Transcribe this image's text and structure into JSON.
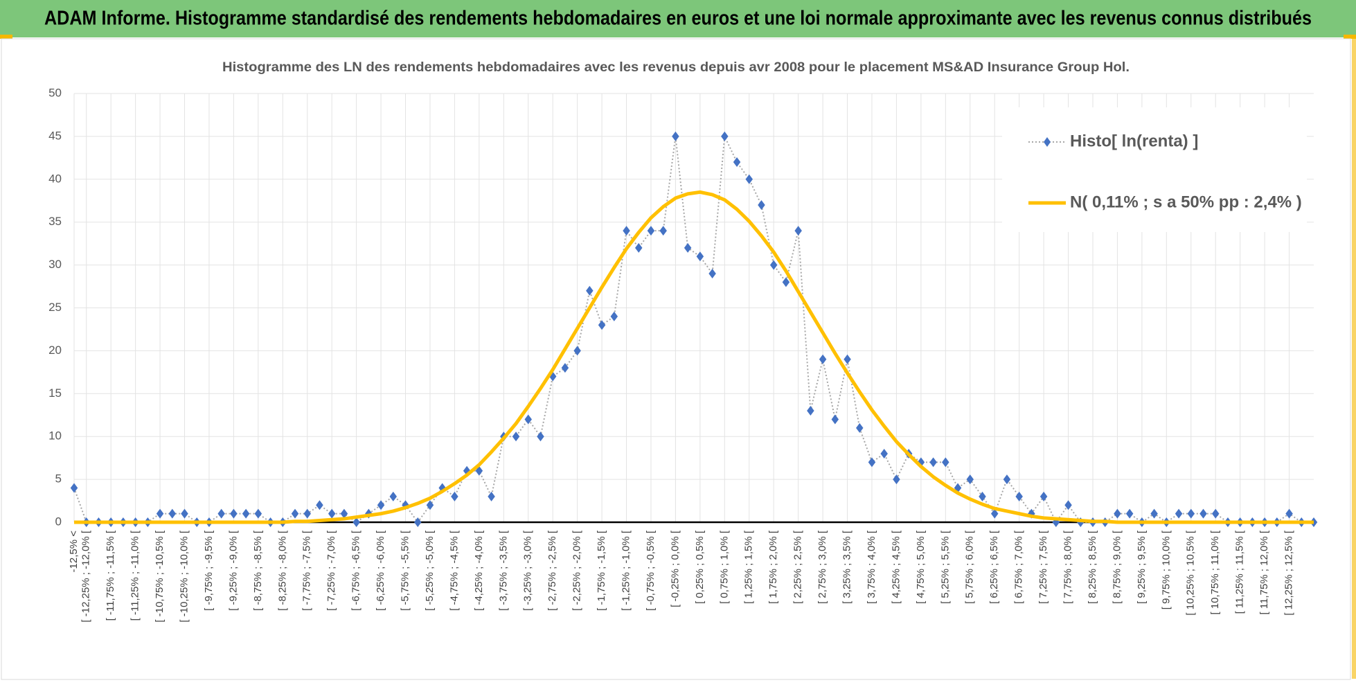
{
  "header": {
    "title": "ADAM Informe. Histogramme standardisé des rendements hebdomadaires en euros et une loi normale approximante avec les revenus connus distribués"
  },
  "chart_data": {
    "type": "line",
    "title": "Histogramme des LN des rendements hebdomadaires avec les revenus depuis avr 2008 pour le placement MS&AD Insurance Group Hol.",
    "categories": [
      "-12,5% <",
      "[ -12,25% ; -12,0% [",
      null,
      "[ -11,75% ; -11,5% [",
      null,
      "[ -11,25% ; -11,0% [",
      null,
      "[ -10,75% ; -10,5% [",
      null,
      "[ -10,25% ; -10,0% [",
      null,
      "[ -9,75% ; -9,5% [",
      null,
      "[ -9,25% ; -9,0% [",
      null,
      "[ -8,75% ; -8,5% [",
      null,
      "[ -8,25% ; -8,0% [",
      null,
      "[ -7,75% ; -7,5% [",
      null,
      "[ -7,25% ; -7,0% [",
      null,
      "[ -6,75% ; -6,5% [",
      null,
      "[ -6,25% ; -6,0% [",
      null,
      "[ -5,75% ; -5,5% [",
      null,
      "[ -5,25% ; -5,0% [",
      null,
      "[ -4,75% ; -4,5% [",
      null,
      "[ -4,25% ; -4,0% [",
      null,
      "[ -3,75% ; -3,5% [",
      null,
      "[ -3,25% ; -3,0% [",
      null,
      "[ -2,75% ; -2,5% [",
      null,
      "[ -2,25% ; -2,0% [",
      null,
      "[ -1,75% ; -1,5% [",
      null,
      "[ -1,25% ; -1,0% [",
      null,
      "[ -0,75% ; -0,5% [",
      null,
      "[ -0,25% ; 0,0% [",
      null,
      "[ 0,25% ; 0,5% [",
      null,
      "[ 0,75% ; 1,0% [",
      null,
      "[ 1,25% ; 1,5% [",
      null,
      "[ 1,75% ; 2,0% [",
      null,
      "[ 2,25% ; 2,5% [",
      null,
      "[ 2,75% ; 3,0% [",
      null,
      "[ 3,25% ; 3,5% [",
      null,
      "[ 3,75% ; 4,0% [",
      null,
      "[ 4,25% ; 4,5% [",
      null,
      "[ 4,75% ; 5,0% [",
      null,
      "[ 5,25% ; 5,5% [",
      null,
      "[ 5,75% ; 6,0% [",
      null,
      "[ 6,25% ; 6,5% [",
      null,
      "[ 6,75% ; 7,0% [",
      null,
      "[ 7,25% ; 7,5% [",
      null,
      "[ 7,75% ; 8,0% [",
      null,
      "[ 8,25% ; 8,5% [",
      null,
      "[ 8,75% ; 9,0% [",
      null,
      "[ 9,25% ; 9,5% [",
      null,
      "[ 9,75% ; 10,0% [",
      null,
      "[ 10,25% ; 10,5% [",
      null,
      "[ 10,75% ; 11,0% [",
      null,
      "[ 11,25% ; 11,5% [",
      null,
      "[ 11,75% ; 12,0% [",
      null,
      "[ 12,25% ; 12,5% [",
      null,
      null
    ],
    "series": [
      {
        "name": "Histo[ ln(renta) ]",
        "color": "#4472c4",
        "line_color": "#a6a6a6",
        "values": [
          4,
          0,
          0,
          0,
          0,
          0,
          0,
          1,
          1,
          1,
          0,
          0,
          1,
          1,
          1,
          1,
          0,
          0,
          1,
          1,
          2,
          1,
          1,
          0,
          1,
          2,
          3,
          2,
          0,
          2,
          4,
          3,
          6,
          6,
          3,
          10,
          10,
          12,
          10,
          17,
          18,
          20,
          27,
          23,
          24,
          34,
          32,
          34,
          34,
          45,
          32,
          31,
          29,
          45,
          42,
          40,
          37,
          30,
          28,
          34,
          13,
          19,
          12,
          19,
          11,
          7,
          8,
          5,
          8,
          7,
          7,
          7,
          4,
          5,
          3,
          1,
          5,
          3,
          1,
          3,
          0,
          2,
          0,
          0,
          0,
          1,
          1,
          0,
          1,
          0,
          1,
          1,
          1,
          1,
          0,
          0,
          0,
          0,
          0,
          1,
          0,
          0
        ]
      },
      {
        "name": "N( 0,11% ; s a 50% pp : 2,4% )",
        "color": "#ffc000",
        "values": [
          0,
          0,
          0,
          0,
          0,
          0,
          0,
          0,
          0,
          0,
          0,
          0,
          0,
          0,
          0,
          0,
          0,
          0,
          0.1,
          0.1,
          0.2,
          0.3,
          0.4,
          0.6,
          0.8,
          1.0,
          1.3,
          1.7,
          2.2,
          2.8,
          3.6,
          4.5,
          5.5,
          6.7,
          8.2,
          9.8,
          11.5,
          13.5,
          15.6,
          17.8,
          20.2,
          22.6,
          25.0,
          27.4,
          29.7,
          31.9,
          33.8,
          35.5,
          36.8,
          37.8,
          38.3,
          38.5,
          38.2,
          37.6,
          36.5,
          35.1,
          33.4,
          31.5,
          29.3,
          26.9,
          24.5,
          22.1,
          19.7,
          17.4,
          15.2,
          13.1,
          11.2,
          9.4,
          7.9,
          6.5,
          5.3,
          4.3,
          3.4,
          2.7,
          2.1,
          1.6,
          1.3,
          1.0,
          0.7,
          0.5,
          0.4,
          0.3,
          0.2,
          0.1,
          0.1,
          0,
          0,
          0,
          0,
          0,
          0,
          0,
          0,
          0,
          0,
          0,
          0,
          0,
          0,
          0,
          0,
          0
        ]
      }
    ],
    "ylim": [
      0,
      50
    ],
    "yticks": [
      0,
      5,
      10,
      15,
      20,
      25,
      30,
      35,
      40,
      45,
      50
    ],
    "grid": true,
    "legend": "upper right"
  }
}
